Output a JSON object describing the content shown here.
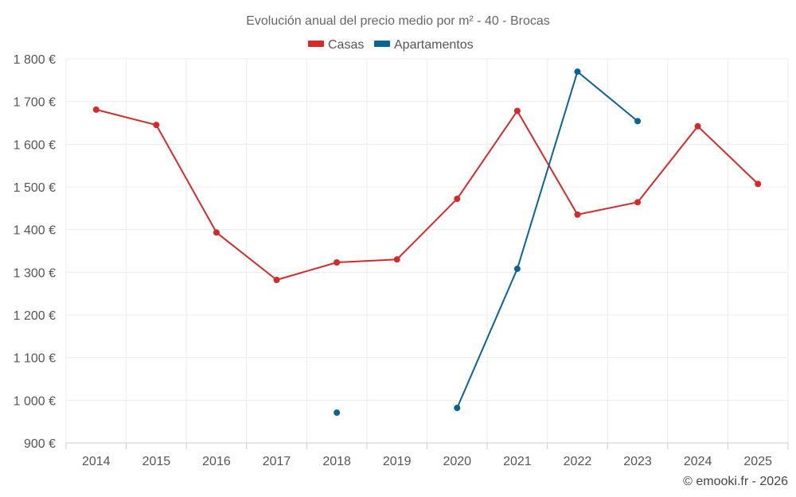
{
  "chart_data": {
    "type": "line",
    "title": "Evolución anual del precio medio por m² - 40 - Brocas",
    "categories": [
      "2014",
      "2015",
      "2016",
      "2017",
      "2018",
      "2019",
      "2020",
      "2021",
      "2022",
      "2023",
      "2024",
      "2025"
    ],
    "y_ticks": [
      "900 €",
      "1 000 €",
      "1 100 €",
      "1 200 €",
      "1 300 €",
      "1 400 €",
      "1 500 €",
      "1 600 €",
      "1 700 €",
      "1 800 €"
    ],
    "ylim": [
      900,
      1800
    ],
    "grid": true,
    "legend_position": "top-center",
    "series": [
      {
        "name": "Casas",
        "color": "#d42a2a",
        "values": [
          1681,
          1645,
          1393,
          1282,
          1323,
          1330,
          1472,
          1678,
          1435,
          1464,
          1642,
          1507
        ]
      },
      {
        "name": "Apartamentos",
        "color": "#0b6394",
        "values": [
          null,
          null,
          null,
          null,
          971,
          null,
          982,
          1308,
          1770,
          1654,
          null,
          null
        ]
      }
    ],
    "credit": "© emooki.fr - 2026"
  }
}
